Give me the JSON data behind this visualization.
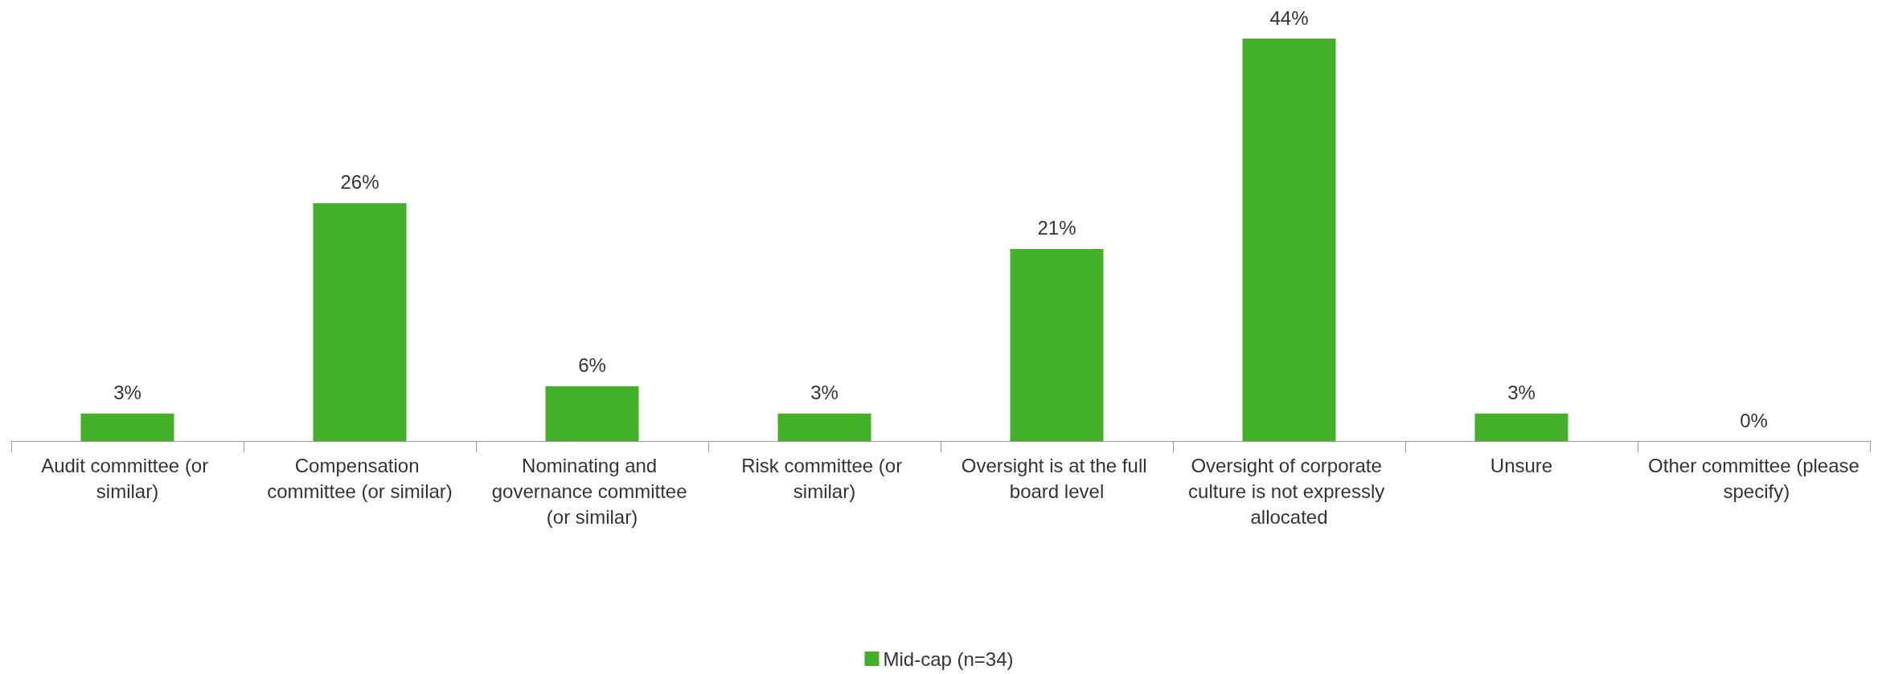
{
  "chart_data": {
    "type": "bar",
    "categories": [
      "Audit committee (or similar)",
      "Compensation committee (or similar)",
      "Nominating and governance committee (or similar)",
      "Risk committee (or similar)",
      "Oversight is at the full board level",
      "Oversight of corporate culture is not expressly allocated",
      "Unsure",
      "Other committee (please specify)"
    ],
    "series": [
      {
        "name": "Mid-cap (n=34)",
        "color": "#43b02a",
        "values": [
          3,
          26,
          6,
          3,
          21,
          44,
          3,
          0
        ],
        "value_labels": [
          "3%",
          "26%",
          "6%",
          "3%",
          "21%",
          "44%",
          "3%",
          "0%"
        ]
      }
    ],
    "legend": "bottom",
    "grid": false
  }
}
